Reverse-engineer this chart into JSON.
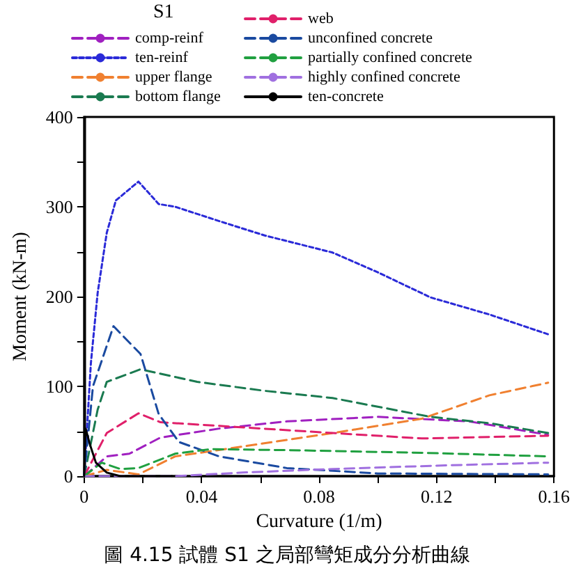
{
  "chart_data": {
    "type": "line",
    "xlabel": "Curvature (1/m)",
    "ylabel": "Moment (kN-m)",
    "legend_title": "S1",
    "legend": "top",
    "grid": false,
    "marker": "none",
    "annotations": [
      "圖 4.15 試體 S1 之局部彎矩成分分析曲線"
    ],
    "xlim": [
      0,
      0.16
    ],
    "ylim": [
      0,
      400
    ],
    "xticks": [
      0,
      {
        "value": 0.02,
        "label": null
      },
      0.04,
      {
        "value": 0.06,
        "label": null
      },
      0.08,
      {
        "value": 0.1,
        "label": null
      },
      0.12,
      {
        "value": 0.14,
        "label": null
      },
      0.16
    ],
    "yticks": [
      0,
      {
        "value": 50,
        "label": null
      },
      100,
      {
        "value": 150,
        "label": null
      },
      200,
      {
        "value": 250,
        "label": null
      },
      300,
      {
        "value": 350,
        "label": null
      },
      400
    ],
    "series": [
      {
        "name": "comp-reinf",
        "color": "#a020c0",
        "line_style": "dashed",
        "x": [
          0,
          0.0077,
          0.0154,
          0.026,
          0.046,
          0.069,
          0.1,
          0.131,
          0.158
        ],
        "values": [
          0,
          22,
          25,
          43,
          53,
          61,
          66,
          61,
          46
        ]
      },
      {
        "name": "ten-reinf",
        "color": "#2a2ad8",
        "line_style": "dotted",
        "x": [
          0,
          0.0023,
          0.0046,
          0.0077,
          0.0108,
          0.0185,
          0.0254,
          0.031,
          0.046,
          0.0615,
          0.0846,
          0.1,
          0.118,
          0.138,
          0.158
        ],
        "values": [
          0,
          126,
          204,
          271,
          307,
          328,
          303,
          300,
          284,
          268,
          249,
          227,
          199,
          180,
          158
        ]
      },
      {
        "name": "upper flange",
        "color": "#f08030",
        "line_style": "dashed",
        "x": [
          0,
          0.0077,
          0.0185,
          0.031,
          0.054,
          0.0846,
          0.115,
          0.138,
          0.158
        ],
        "values": [
          0,
          7,
          2,
          22,
          33,
          48,
          64,
          90,
          104
        ]
      },
      {
        "name": "bottom flange",
        "color": "#1a7a50",
        "line_style": "dashed",
        "x": [
          0,
          0.0046,
          0.0077,
          0.0192,
          0.0385,
          0.0615,
          0.0846,
          0.118,
          0.138,
          0.158
        ],
        "values": [
          0,
          74,
          105,
          119,
          105,
          95,
          87,
          66,
          59,
          48
        ]
      },
      {
        "name": "web",
        "color": "#e0206a",
        "line_style": "dashed",
        "x": [
          0,
          0.0077,
          0.0185,
          0.026,
          0.046,
          0.0846,
          0.115,
          0.158
        ],
        "values": [
          0,
          48,
          70,
          60,
          56,
          48,
          42,
          45
        ]
      },
      {
        "name": "unconfined concrete",
        "color": "#1a4aa0",
        "line_style": "dashed",
        "x": [
          0,
          0.003,
          0.01,
          0.0192,
          0.0254,
          0.0323,
          0.046,
          0.069,
          0.1,
          0.158
        ],
        "values": [
          0,
          100,
          167,
          136,
          69,
          38,
          22,
          9,
          3,
          2
        ]
      },
      {
        "name": "partially confined concrete",
        "color": "#20a040",
        "line_style": "dashed",
        "x": [
          0,
          0.006,
          0.0123,
          0.0185,
          0.031,
          0.043,
          0.069,
          0.115,
          0.158
        ],
        "values": [
          0,
          15,
          8,
          9,
          25,
          30,
          29,
          26,
          22
        ]
      },
      {
        "name": "highly confined concrete",
        "color": "#a070e0",
        "line_style": "dashed",
        "x": [
          0,
          0.031,
          0.054,
          0.0846,
          0.123,
          0.158
        ],
        "values": [
          0,
          0,
          4,
          8,
          12,
          15
        ]
      },
      {
        "name": "ten-concrete",
        "color": "#000000",
        "line_style": "solid",
        "x": [
          0,
          0.0005,
          0.002,
          0.004,
          0.0077,
          0.0123,
          0.03
        ],
        "values": [
          0,
          53,
          35,
          15,
          4,
          0,
          0
        ]
      }
    ]
  }
}
